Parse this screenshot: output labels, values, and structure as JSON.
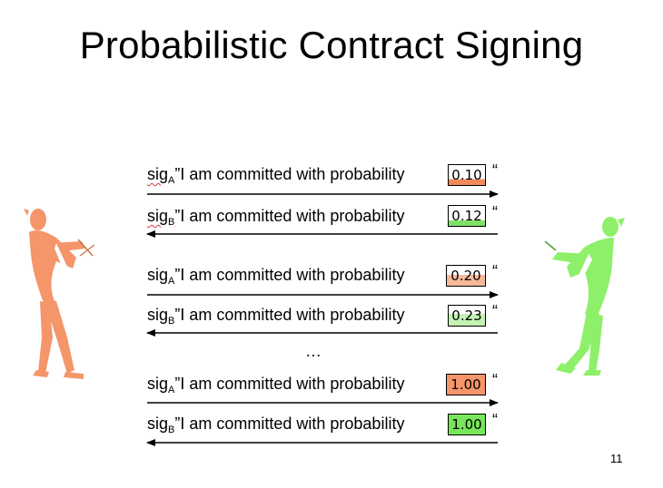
{
  "slide": {
    "title": "Probabilistic Contract Signing",
    "page_number": "11",
    "ellipsis": "…"
  },
  "messages": [
    {
      "sig": "sig",
      "sub": "A",
      "text": "”I am committed with probability",
      "value": "0.10",
      "close_quote": "“",
      "direction": "right",
      "fill": "#f28a5a"
    },
    {
      "sig": "sig",
      "sub": "B",
      "text": "”I am committed with probability",
      "value": "0.12",
      "close_quote": "“",
      "direction": "left",
      "fill": "#7fe066"
    },
    {
      "sig": "sig",
      "sub": "A",
      "text": "”I am committed with probability",
      "value": "0.20",
      "close_quote": "“",
      "direction": "right",
      "fill": "#f7b99a"
    },
    {
      "sig": "sig",
      "sub": "B",
      "text": "”I am committed with probability",
      "value": "0.23",
      "close_quote": "“",
      "direction": "left",
      "fill": "#c4f2b4"
    },
    {
      "sig": "sig",
      "sub": "A",
      "text": "”I am committed with probability",
      "value": "1.00",
      "close_quote": "“",
      "direction": "right",
      "fill": "#f4956a"
    },
    {
      "sig": "sig",
      "sub": "B",
      "text": "”I am committed with probability",
      "value": "1.00",
      "close_quote": "“",
      "direction": "left",
      "fill": "#77e65a"
    }
  ],
  "figures": {
    "left": {
      "icon": "person-pulling-rope-icon",
      "color": "#f4956a"
    },
    "right": {
      "icon": "person-pulling-rope-icon",
      "color": "#8ef06a"
    }
  }
}
